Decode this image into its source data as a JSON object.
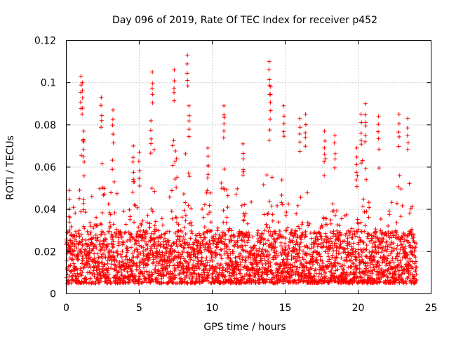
{
  "chart_data": {
    "type": "scatter",
    "title": "Day 096 of 2019, Rate Of TEC Index for receiver p452",
    "xlabel": "GPS time / hours",
    "ylabel": "ROTI / TECUs",
    "xlim": [
      0,
      25
    ],
    "ylim": [
      0,
      0.12
    ],
    "xticks": [
      0,
      5,
      10,
      15,
      20,
      25
    ],
    "xtick_labels": [
      "0",
      "5",
      "10",
      "15",
      "20",
      "25"
    ],
    "yticks": [
      0,
      0.02,
      0.04,
      0.06,
      0.08,
      0.1,
      0.12
    ],
    "ytick_labels": [
      "0",
      "0.02",
      "0.04",
      "0.06",
      "0.08",
      "0.1",
      "0.12"
    ],
    "grid": true,
    "marker": "+",
    "color": "#ff0000",
    "series": [
      {
        "name": "p452 ROTI",
        "x_range": [
          0,
          24
        ],
        "typical_y_range": [
          0.005,
          0.03
        ],
        "spikes": [
          {
            "x": 0.2,
            "y": 0.049
          },
          {
            "x": 1.0,
            "y": 0.103
          },
          {
            "x": 1.1,
            "y": 0.1
          },
          {
            "x": 1.2,
            "y": 0.077
          },
          {
            "x": 2.4,
            "y": 0.093
          },
          {
            "x": 3.2,
            "y": 0.087
          },
          {
            "x": 4.6,
            "y": 0.07
          },
          {
            "x": 5.0,
            "y": 0.067
          },
          {
            "x": 5.8,
            "y": 0.082
          },
          {
            "x": 5.9,
            "y": 0.105
          },
          {
            "x": 7.4,
            "y": 0.106
          },
          {
            "x": 8.3,
            "y": 0.113
          },
          {
            "x": 8.4,
            "y": 0.089
          },
          {
            "x": 9.7,
            "y": 0.069
          },
          {
            "x": 10.8,
            "y": 0.089
          },
          {
            "x": 12.1,
            "y": 0.071
          },
          {
            "x": 13.9,
            "y": 0.11
          },
          {
            "x": 14.0,
            "y": 0.098
          },
          {
            "x": 14.9,
            "y": 0.089
          },
          {
            "x": 16.0,
            "y": 0.083
          },
          {
            "x": 16.4,
            "y": 0.085
          },
          {
            "x": 17.7,
            "y": 0.077
          },
          {
            "x": 18.4,
            "y": 0.075
          },
          {
            "x": 19.9,
            "y": 0.069
          },
          {
            "x": 20.2,
            "y": 0.085
          },
          {
            "x": 20.5,
            "y": 0.09
          },
          {
            "x": 21.4,
            "y": 0.084
          },
          {
            "x": 22.8,
            "y": 0.085
          },
          {
            "x": 23.4,
            "y": 0.083
          }
        ]
      }
    ]
  }
}
